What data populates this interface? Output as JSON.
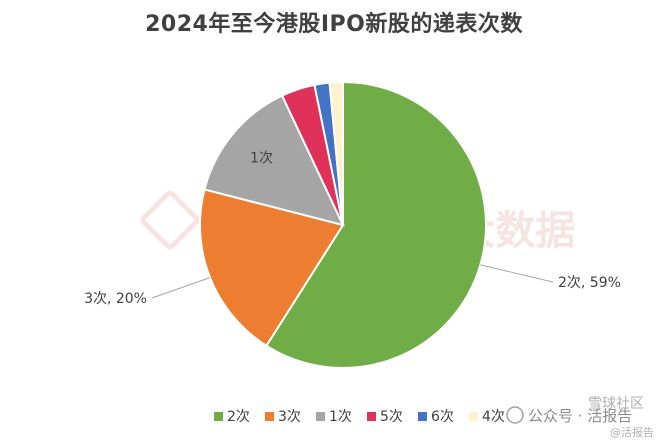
{
  "chart_data": {
    "type": "pie",
    "title": "2024年至今港股IPO新股的递表次数",
    "slices": [
      {
        "label": "2次",
        "value": 59,
        "color": "#70AD47",
        "data_label": "2次, 59%"
      },
      {
        "label": "3次",
        "value": 20,
        "color": "#ED7D31",
        "data_label": "3次, 20%"
      },
      {
        "label": "1次",
        "value": 14,
        "color": "#A5A5A5",
        "data_label": "1次"
      },
      {
        "label": "5次",
        "value": 3.8,
        "color": "#E0315A"
      },
      {
        "label": "6次",
        "value": 1.7,
        "color": "#4472C4"
      },
      {
        "label": "4次",
        "value": 1.5,
        "color": "#FFF2CC"
      }
    ],
    "legend_position": "bottom",
    "legend": [
      "2次",
      "3次",
      "1次",
      "5次",
      "6次",
      "4次"
    ]
  },
  "watermark": {
    "brand": "LiveReport大数据",
    "footer": "公众号 · 活报告",
    "corner": "@活报告",
    "corner2": "雪球社区"
  }
}
